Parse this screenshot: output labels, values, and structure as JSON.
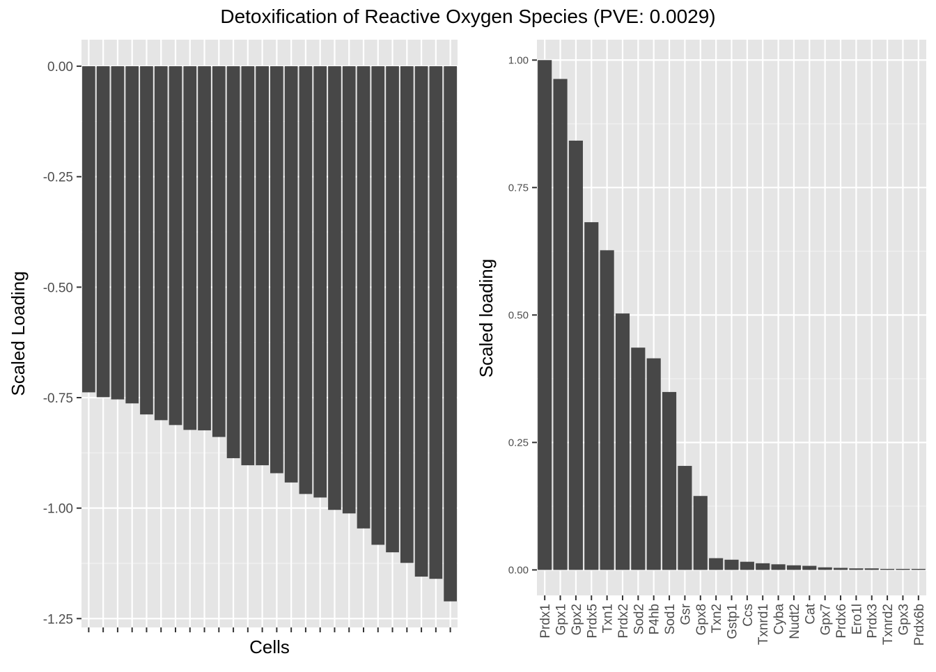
{
  "title": "Detoxification of Reactive Oxygen Species (PVE: 0.0029)",
  "chart_data": [
    {
      "type": "bar",
      "xlabel": "Cells",
      "ylabel": "Scaled Loading",
      "ylim": [
        -1.27,
        0.06
      ],
      "yticks": [
        0.0,
        -0.25,
        -0.5,
        -0.75,
        -1.0,
        -1.25
      ],
      "ytick_labels": [
        "0.00",
        "-0.25",
        "-0.50",
        "-0.75",
        "-1.00",
        "-1.25"
      ],
      "categories": [
        "",
        "",
        "",
        "",
        "",
        "",
        "",
        "",
        "",
        "",
        "",
        "",
        "",
        "",
        "",
        "",
        "",
        "",
        "",
        "",
        "",
        "",
        "",
        "",
        "",
        ""
      ],
      "values": [
        -0.738,
        -0.749,
        -0.754,
        -0.763,
        -0.788,
        -0.801,
        -0.812,
        -0.823,
        -0.824,
        -0.839,
        -0.887,
        -0.903,
        -0.903,
        -0.921,
        -0.942,
        -0.968,
        -0.976,
        -1.004,
        -1.012,
        -1.046,
        -1.083,
        -1.1,
        -1.124,
        -1.155,
        -1.16,
        -1.211
      ],
      "grid": true
    },
    {
      "type": "bar",
      "xlabel": "",
      "ylabel": "Scaled loading",
      "ylim": [
        -0.05,
        1.04
      ],
      "yticks": [
        0.0,
        0.25,
        0.5,
        0.75,
        1.0
      ],
      "ytick_labels": [
        "0.00",
        "0.25",
        "0.50",
        "0.75",
        "1.00"
      ],
      "categories": [
        "Prdx1",
        "Gpx1",
        "Gpx2",
        "Prdx5",
        "Txn1",
        "Prdx2",
        "Sod2",
        "P4hb",
        "Sod1",
        "Gsr",
        "Gpx8",
        "Txn2",
        "Gstp1",
        "Ccs",
        "Txnrd1",
        "Cyba",
        "Nudt2",
        "Cat",
        "Gpx7",
        "Prdx6",
        "Ero1l",
        "Prdx3",
        "Txnrd2",
        "Gpx3",
        "Prdx6b"
      ],
      "values": [
        1.0,
        0.963,
        0.842,
        0.682,
        0.627,
        0.503,
        0.436,
        0.415,
        0.349,
        0.204,
        0.145,
        0.023,
        0.02,
        0.016,
        0.013,
        0.011,
        0.009,
        0.008,
        0.005,
        0.004,
        0.003,
        0.003,
        0.002,
        0.002,
        0.002
      ],
      "grid": true
    }
  ]
}
